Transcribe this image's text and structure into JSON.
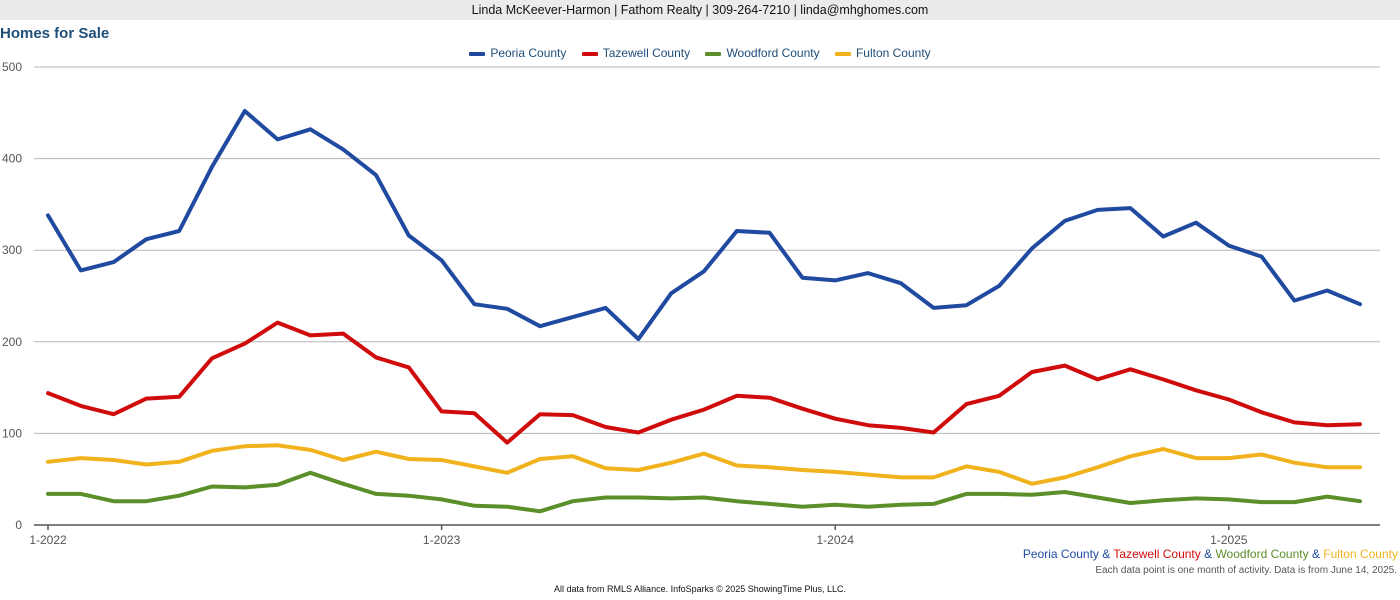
{
  "header": {
    "contact": "Linda McKeever-Harmon | Fathom Realty | 309-264-7210 | linda@mhghomes.com"
  },
  "chart_data": {
    "type": "line",
    "title": "Homes for Sale",
    "xlabel": "",
    "ylabel": "",
    "ylim": [
      0,
      500
    ],
    "y_ticks": [
      "0",
      "100",
      "200",
      "300",
      "400",
      "500"
    ],
    "x_ticks": [
      {
        "label": "1-2022",
        "index": 0
      },
      {
        "label": "1-2023",
        "index": 12
      },
      {
        "label": "1-2024",
        "index": 24
      },
      {
        "label": "1-2025",
        "index": 36
      }
    ],
    "grid": true,
    "legend_position": "top-center",
    "series": [
      {
        "name": "Peoria County",
        "color": "#1f4aa0",
        "values": [
          338,
          278,
          287,
          312,
          321,
          391,
          452,
          421,
          432,
          410,
          382,
          316,
          289,
          241,
          236,
          217,
          227,
          237,
          203,
          253,
          277,
          321,
          319,
          270,
          267,
          275,
          264,
          237,
          240,
          261,
          302,
          332,
          344,
          346,
          315,
          330,
          305,
          293,
          245,
          256,
          241
        ]
      },
      {
        "name": "Tazewell County",
        "color": "#d00b0b",
        "values": [
          144,
          130,
          121,
          138,
          140,
          182,
          198,
          221,
          207,
          209,
          183,
          172,
          124,
          122,
          90,
          121,
          120,
          107,
          101,
          115,
          126,
          141,
          139,
          127,
          116,
          109,
          106,
          101,
          132,
          141,
          167,
          174,
          159,
          170,
          159,
          147,
          137,
          123,
          112,
          109,
          110
        ]
      },
      {
        "name": "Woodford County",
        "color": "#5a8f29",
        "values": [
          34,
          34,
          26,
          26,
          32,
          42,
          41,
          44,
          57,
          45,
          34,
          32,
          28,
          21,
          20,
          15,
          26,
          30,
          30,
          29,
          30,
          26,
          23,
          20,
          22,
          20,
          22,
          23,
          34,
          34,
          33,
          36,
          30,
          24,
          27,
          29,
          28,
          25,
          25,
          31,
          26
        ]
      },
      {
        "name": "Fulton County",
        "color": "#f0b31e",
        "values": [
          69,
          73,
          71,
          66,
          69,
          81,
          86,
          87,
          82,
          71,
          80,
          72,
          71,
          64,
          57,
          72,
          75,
          62,
          60,
          68,
          78,
          65,
          63,
          60,
          58,
          55,
          52,
          52,
          64,
          58,
          45,
          52,
          63,
          75,
          83,
          73,
          73,
          77,
          68,
          63,
          63
        ]
      }
    ]
  },
  "bottom_legend": {
    "s1": "Peoria County",
    "amp": " & ",
    "s2": "Tazewell County",
    "s3": "Woodford County",
    "s4": "Fulton County"
  },
  "note": "Each data point is one month of activity. Data is from June 14, 2025.",
  "footer": "All data from RMLS Alliance. InfoSparks © 2025 ShowingTime Plus, LLC."
}
